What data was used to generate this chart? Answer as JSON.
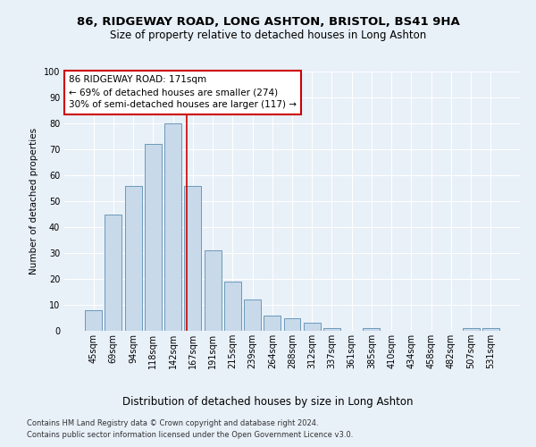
{
  "title1": "86, RIDGEWAY ROAD, LONG ASHTON, BRISTOL, BS41 9HA",
  "title2": "Size of property relative to detached houses in Long Ashton",
  "xlabel": "Distribution of detached houses by size in Long Ashton",
  "ylabel": "Number of detached properties",
  "bar_labels": [
    "45sqm",
    "69sqm",
    "94sqm",
    "118sqm",
    "142sqm",
    "167sqm",
    "191sqm",
    "215sqm",
    "239sqm",
    "264sqm",
    "288sqm",
    "312sqm",
    "337sqm",
    "361sqm",
    "385sqm",
    "410sqm",
    "434sqm",
    "458sqm",
    "482sqm",
    "507sqm",
    "531sqm"
  ],
  "bar_values": [
    8,
    45,
    56,
    72,
    80,
    56,
    31,
    19,
    12,
    6,
    5,
    3,
    1,
    0,
    1,
    0,
    0,
    0,
    0,
    1,
    1
  ],
  "bar_color": "#c8d9ea",
  "bar_edge_color": "#5a8db0",
  "property_label": "86 RIDGEWAY ROAD: 171sqm",
  "annotation_line1": "← 69% of detached houses are smaller (274)",
  "annotation_line2": "30% of semi-detached houses are larger (117) →",
  "vline_color": "#cc0000",
  "annotation_box_facecolor": "#ffffff",
  "annotation_box_edgecolor": "#cc0000",
  "ylim": [
    0,
    100
  ],
  "footnote1": "Contains HM Land Registry data © Crown copyright and database right 2024.",
  "footnote2": "Contains public sector information licensed under the Open Government Licence v3.0.",
  "bg_color": "#e8f0f8",
  "plot_bg_color": "#e8f0f8",
  "grid_color": "#ffffff",
  "title1_fontsize": 9.5,
  "title2_fontsize": 8.5,
  "xlabel_fontsize": 8.5,
  "ylabel_fontsize": 7.5,
  "tick_fontsize": 7,
  "annotation_fontsize": 7.5,
  "footnote_fontsize": 6
}
